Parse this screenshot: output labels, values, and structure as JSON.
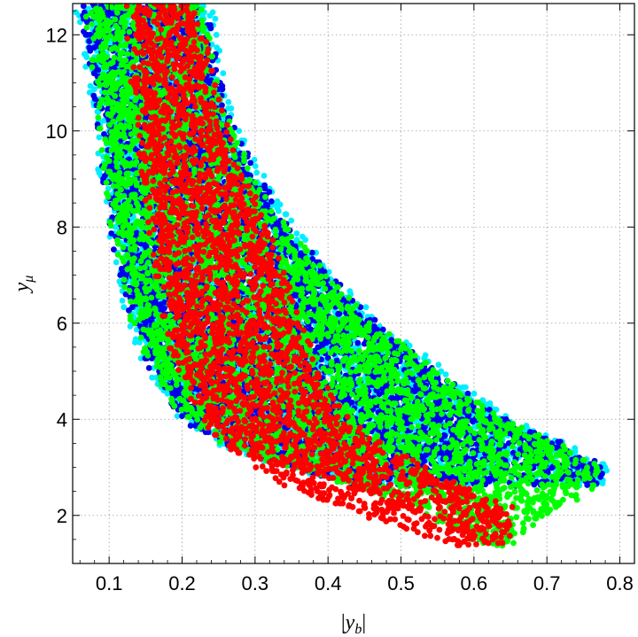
{
  "chart_data": {
    "type": "scatter",
    "title": "",
    "xlabel": "|y_b|",
    "ylabel": "y_μ",
    "xlim": [
      0.05,
      0.82
    ],
    "ylim": [
      1.0,
      12.65
    ],
    "x_ticks": [
      0.1,
      0.2,
      0.3,
      0.4,
      0.5,
      0.6,
      0.7,
      0.8
    ],
    "x_tick_labels": [
      "0.1",
      "0.2",
      "0.3",
      "0.4",
      "0.5",
      "0.6",
      "0.7",
      "0.8"
    ],
    "y_ticks": [
      2,
      4,
      6,
      8,
      10,
      12
    ],
    "y_tick_labels": [
      "2",
      "4",
      "6",
      "8",
      "10",
      "12"
    ],
    "grid": true,
    "legend": "none",
    "series": [
      {
        "color": "#00eeff",
        "band": {
          "y": [
            12.6,
            11,
            10,
            9,
            8,
            7,
            6,
            5,
            4,
            3.5,
            3,
            2.6
          ],
          "x_min": [
            0.068,
            0.085,
            0.095,
            0.1,
            0.112,
            0.125,
            0.14,
            0.165,
            0.21,
            0.26,
            0.35,
            0.45
          ],
          "x_max": [
            0.23,
            0.245,
            0.265,
            0.3,
            0.34,
            0.395,
            0.46,
            0.55,
            0.64,
            0.72,
            0.77,
            0.77
          ]
        }
      },
      {
        "color": "#0000ee",
        "band": {
          "y": [
            12.6,
            11,
            10,
            9,
            8,
            7,
            6,
            5,
            4,
            3.5,
            3,
            2.6
          ],
          "x_min": [
            0.075,
            0.09,
            0.1,
            0.105,
            0.115,
            0.128,
            0.143,
            0.168,
            0.212,
            0.265,
            0.355,
            0.46
          ],
          "x_max": [
            0.22,
            0.24,
            0.26,
            0.295,
            0.335,
            0.39,
            0.455,
            0.54,
            0.63,
            0.71,
            0.765,
            0.765
          ]
        }
      },
      {
        "color": "#00ff00",
        "band": {
          "y": [
            12.6,
            11,
            10,
            9,
            8,
            7,
            6,
            5,
            4,
            3.5,
            3,
            2.6,
            2.2,
            1.9,
            1.6,
            1.35
          ],
          "x_min": [
            0.08,
            0.093,
            0.102,
            0.108,
            0.117,
            0.13,
            0.145,
            0.17,
            0.215,
            0.265,
            0.35,
            0.45,
            0.52,
            0.56,
            0.6,
            0.63
          ],
          "x_max": [
            0.215,
            0.235,
            0.255,
            0.29,
            0.33,
            0.385,
            0.45,
            0.535,
            0.625,
            0.705,
            0.76,
            0.76,
            0.72,
            0.68,
            0.655,
            0.64
          ]
        }
      },
      {
        "color": "#ff0000",
        "band": {
          "y": [
            12.6,
            11,
            10,
            9,
            8,
            7,
            6,
            5,
            4,
            3.5,
            3,
            2.5,
            2.2,
            1.9,
            1.6,
            1.35
          ],
          "x_min": [
            0.135,
            0.145,
            0.152,
            0.16,
            0.168,
            0.178,
            0.19,
            0.205,
            0.24,
            0.27,
            0.31,
            0.37,
            0.42,
            0.48,
            0.54,
            0.59
          ],
          "x_max": [
            0.21,
            0.23,
            0.25,
            0.275,
            0.305,
            0.33,
            0.35,
            0.375,
            0.415,
            0.46,
            0.52,
            0.59,
            0.64,
            0.64,
            0.64,
            0.635
          ]
        }
      }
    ]
  }
}
